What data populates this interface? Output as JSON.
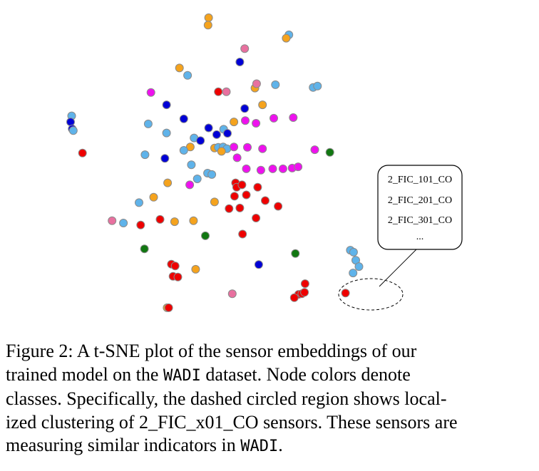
{
  "chart_data": {
    "type": "scatter",
    "title": "",
    "xlabel": "",
    "ylabel": "",
    "xlim": [
      0,
      100
    ],
    "ylim": [
      0,
      100
    ],
    "grid": false,
    "legend": "none",
    "class_colors": {
      "red": "#ee0000",
      "orange": "#f5a31d",
      "lightblue": "#5fb3ea",
      "blue": "#0000d6",
      "magenta": "#ee11ee",
      "pink": "#e8709f",
      "green": "#117711"
    },
    "points": [
      {
        "x": 38.7,
        "y": 94.7,
        "c": "orange"
      },
      {
        "x": 38.6,
        "y": 92.5,
        "c": "orange"
      },
      {
        "x": 53.6,
        "y": 89.6,
        "c": "lightblue"
      },
      {
        "x": 53.1,
        "y": 88.6,
        "c": "orange"
      },
      {
        "x": 45.4,
        "y": 85.5,
        "c": "pink"
      },
      {
        "x": 44.5,
        "y": 81.5,
        "c": "blue"
      },
      {
        "x": 33.3,
        "y": 79.7,
        "c": "orange"
      },
      {
        "x": 34.8,
        "y": 77.5,
        "c": "lightblue"
      },
      {
        "x": 47.3,
        "y": 73.7,
        "c": "orange"
      },
      {
        "x": 47.6,
        "y": 75.0,
        "c": "pink"
      },
      {
        "x": 51.1,
        "y": 74.7,
        "c": "lightblue"
      },
      {
        "x": 58.1,
        "y": 73.9,
        "c": "lightblue"
      },
      {
        "x": 58.9,
        "y": 74.3,
        "c": "lightblue"
      },
      {
        "x": 28.0,
        "y": 72.4,
        "c": "magenta"
      },
      {
        "x": 40.5,
        "y": 72.6,
        "c": "red"
      },
      {
        "x": 42.0,
        "y": 72.6,
        "c": "pink"
      },
      {
        "x": 30.9,
        "y": 68.7,
        "c": "blue"
      },
      {
        "x": 45.4,
        "y": 67.6,
        "c": "blue"
      },
      {
        "x": 48.7,
        "y": 68.7,
        "c": "orange"
      },
      {
        "x": 13.3,
        "y": 65.4,
        "c": "lightblue"
      },
      {
        "x": 13.1,
        "y": 63.6,
        "c": "blue"
      },
      {
        "x": 13.4,
        "y": 61.5,
        "c": "blue"
      },
      {
        "x": 13.6,
        "y": 61.0,
        "c": "lightblue"
      },
      {
        "x": 27.5,
        "y": 63.0,
        "c": "lightblue"
      },
      {
        "x": 34.1,
        "y": 64.5,
        "c": "blue"
      },
      {
        "x": 38.7,
        "y": 61.8,
        "c": "blue"
      },
      {
        "x": 40.2,
        "y": 59.8,
        "c": "blue"
      },
      {
        "x": 41.5,
        "y": 61.4,
        "c": "lightblue"
      },
      {
        "x": 42.2,
        "y": 60.2,
        "c": "blue"
      },
      {
        "x": 43.4,
        "y": 63.6,
        "c": "orange"
      },
      {
        "x": 45.5,
        "y": 64.0,
        "c": "magenta"
      },
      {
        "x": 47.5,
        "y": 63.2,
        "c": "magenta"
      },
      {
        "x": 50.8,
        "y": 64.7,
        "c": "magenta"
      },
      {
        "x": 54.4,
        "y": 64.9,
        "c": "magenta"
      },
      {
        "x": 30.9,
        "y": 60.3,
        "c": "lightblue"
      },
      {
        "x": 36.0,
        "y": 58.8,
        "c": "lightblue"
      },
      {
        "x": 37.2,
        "y": 58.0,
        "c": "blue"
      },
      {
        "x": 35.3,
        "y": 56.1,
        "c": "orange"
      },
      {
        "x": 34.1,
        "y": 55.1,
        "c": "lightblue"
      },
      {
        "x": 39.8,
        "y": 55.8,
        "c": "orange"
      },
      {
        "x": 40.5,
        "y": 56.0,
        "c": "lightblue"
      },
      {
        "x": 41.4,
        "y": 56.1,
        "c": "lightblue"
      },
      {
        "x": 42.1,
        "y": 55.6,
        "c": "lightblue"
      },
      {
        "x": 41.1,
        "y": 54.8,
        "c": "orange"
      },
      {
        "x": 43.4,
        "y": 56.1,
        "c": "magenta"
      },
      {
        "x": 45.9,
        "y": 56.0,
        "c": "magenta"
      },
      {
        "x": 48.7,
        "y": 55.6,
        "c": "magenta"
      },
      {
        "x": 44.0,
        "y": 52.9,
        "c": "magenta"
      },
      {
        "x": 15.3,
        "y": 54.3,
        "c": "red"
      },
      {
        "x": 26.9,
        "y": 53.8,
        "c": "lightblue"
      },
      {
        "x": 30.6,
        "y": 52.7,
        "c": "blue"
      },
      {
        "x": 35.5,
        "y": 50.8,
        "c": "lightblue"
      },
      {
        "x": 38.5,
        "y": 48.3,
        "c": "lightblue"
      },
      {
        "x": 39.3,
        "y": 47.9,
        "c": "lightblue"
      },
      {
        "x": 45.7,
        "y": 49.6,
        "c": "magenta"
      },
      {
        "x": 48.4,
        "y": 49.2,
        "c": "magenta"
      },
      {
        "x": 50.6,
        "y": 49.6,
        "c": "magenta"
      },
      {
        "x": 52.5,
        "y": 49.6,
        "c": "magenta"
      },
      {
        "x": 54.2,
        "y": 49.8,
        "c": "magenta"
      },
      {
        "x": 55.3,
        "y": 50.2,
        "c": "magenta"
      },
      {
        "x": 58.4,
        "y": 55.3,
        "c": "magenta"
      },
      {
        "x": 61.2,
        "y": 54.5,
        "c": "green"
      },
      {
        "x": 36.6,
        "y": 46.6,
        "c": "lightblue"
      },
      {
        "x": 35.2,
        "y": 44.8,
        "c": "magenta"
      },
      {
        "x": 31.1,
        "y": 45.4,
        "c": "orange"
      },
      {
        "x": 43.7,
        "y": 45.4,
        "c": "red"
      },
      {
        "x": 43.9,
        "y": 44.1,
        "c": "red"
      },
      {
        "x": 44.9,
        "y": 44.8,
        "c": "red"
      },
      {
        "x": 47.8,
        "y": 44.1,
        "c": "red"
      },
      {
        "x": 43.5,
        "y": 41.4,
        "c": "red"
      },
      {
        "x": 45.7,
        "y": 41.8,
        "c": "red"
      },
      {
        "x": 49.2,
        "y": 40.1,
        "c": "red"
      },
      {
        "x": 28.5,
        "y": 41.1,
        "c": "orange"
      },
      {
        "x": 25.8,
        "y": 39.5,
        "c": "lightblue"
      },
      {
        "x": 39.8,
        "y": 39.7,
        "c": "orange"
      },
      {
        "x": 42.5,
        "y": 37.7,
        "c": "red"
      },
      {
        "x": 44.5,
        "y": 37.9,
        "c": "red"
      },
      {
        "x": 51.6,
        "y": 38.4,
        "c": "red"
      },
      {
        "x": 20.8,
        "y": 34.1,
        "c": "pink"
      },
      {
        "x": 22.9,
        "y": 33.4,
        "c": "lightblue"
      },
      {
        "x": 26.1,
        "y": 32.8,
        "c": "red"
      },
      {
        "x": 29.7,
        "y": 34.5,
        "c": "red"
      },
      {
        "x": 32.4,
        "y": 33.8,
        "c": "orange"
      },
      {
        "x": 35.9,
        "y": 34.1,
        "c": "orange"
      },
      {
        "x": 47.5,
        "y": 34.9,
        "c": "red"
      },
      {
        "x": 38.1,
        "y": 29.6,
        "c": "green"
      },
      {
        "x": 45.0,
        "y": 30.1,
        "c": "red"
      },
      {
        "x": 26.8,
        "y": 25.7,
        "c": "green"
      },
      {
        "x": 31.8,
        "y": 21.1,
        "c": "red"
      },
      {
        "x": 32.5,
        "y": 20.6,
        "c": "red"
      },
      {
        "x": 32.1,
        "y": 17.5,
        "c": "red"
      },
      {
        "x": 33.0,
        "y": 17.3,
        "c": "red"
      },
      {
        "x": 36.3,
        "y": 19.6,
        "c": "orange"
      },
      {
        "x": 48.0,
        "y": 21.0,
        "c": "blue"
      },
      {
        "x": 31.0,
        "y": 8.1,
        "c": "orange"
      },
      {
        "x": 31.3,
        "y": 8.1,
        "c": "red"
      },
      {
        "x": 43.1,
        "y": 12.3,
        "c": "pink"
      },
      {
        "x": 54.8,
        "y": 24.3,
        "c": "green"
      },
      {
        "x": 56.6,
        "y": 15.3,
        "c": "red"
      },
      {
        "x": 55.4,
        "y": 12.1,
        "c": "red"
      },
      {
        "x": 56.0,
        "y": 12.3,
        "c": "red"
      },
      {
        "x": 56.5,
        "y": 12.7,
        "c": "red"
      },
      {
        "x": 54.6,
        "y": 11.1,
        "c": "red"
      },
      {
        "x": 64.1,
        "y": 12.5,
        "c": "red"
      },
      {
        "x": 65.0,
        "y": 25.3,
        "c": "lightblue"
      },
      {
        "x": 65.6,
        "y": 24.7,
        "c": "lightblue"
      },
      {
        "x": 66.0,
        "y": 22.3,
        "c": "lightblue"
      },
      {
        "x": 66.6,
        "y": 20.4,
        "c": "lightblue"
      },
      {
        "x": 65.5,
        "y": 18.5,
        "c": "lightblue"
      }
    ],
    "annotation": {
      "labels": [
        "2_FIC_101_CO",
        "2_FIC_201_CO",
        "2_FIC_301_CO",
        "..."
      ]
    }
  },
  "caption": {
    "label": "Figure 2:",
    "line1": "A t-SNE plot of the sensor embeddings of our",
    "line2_a": "trained model on the ",
    "dataset": "WADI",
    "line2_b": " dataset. Node colors denote",
    "line3": "classes. Specifically, the dashed circled region shows local-",
    "line4": "ized clustering of 2_FIC_x01_CO sensors. These sensors are",
    "line5": "measuring similar indicators in "
  }
}
